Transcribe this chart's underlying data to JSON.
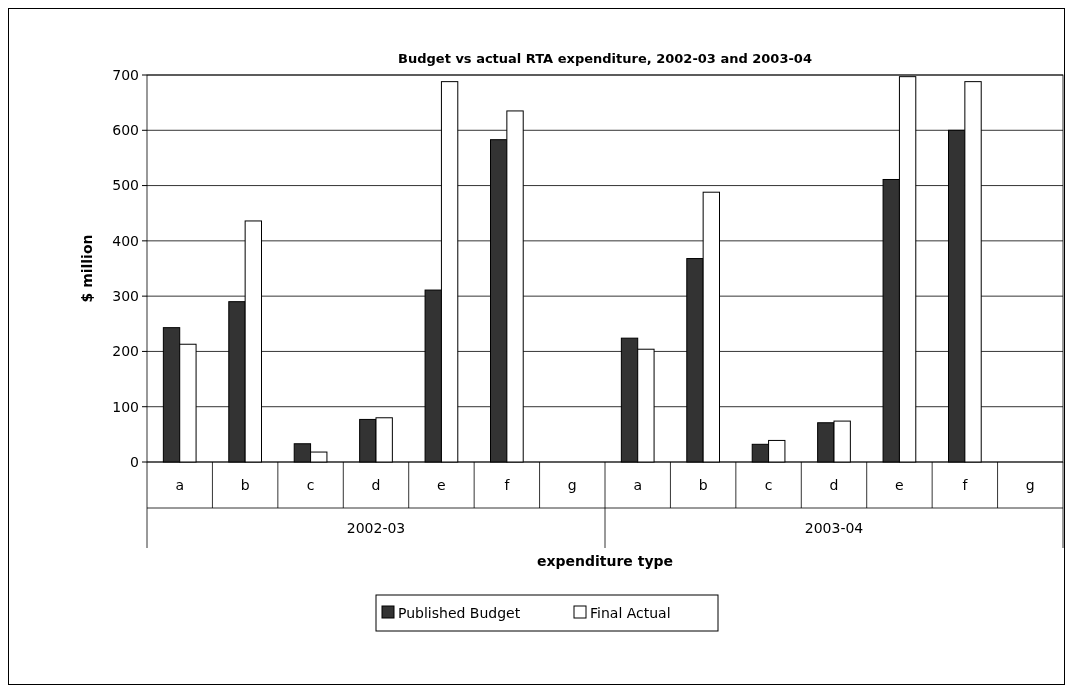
{
  "chart_data": {
    "type": "bar",
    "title": "Budget vs actual RTA expenditure, 2002-03 and 2003-04",
    "xlabel": "expenditure type",
    "ylabel": "$ million",
    "categories": [
      "a",
      "b",
      "c",
      "d",
      "e",
      "f",
      "g",
      "a",
      "b",
      "c",
      "d",
      "e",
      "f",
      "g"
    ],
    "annotations": [
      "2002-03",
      "2003-04"
    ],
    "series": [
      {
        "name": "Published Budget",
        "color": "#333333",
        "values": [
          243,
          290,
          33,
          77,
          311,
          583,
          null,
          224,
          368,
          32,
          71,
          511,
          600,
          null
        ]
      },
      {
        "name": "Final Actual",
        "color": "#ffffff",
        "values": [
          213,
          436,
          18,
          80,
          688,
          635,
          null,
          204,
          488,
          39,
          74,
          697,
          688,
          null
        ]
      }
    ],
    "ylim": [
      0,
      700
    ],
    "yticks": [
      0,
      100,
      200,
      300,
      400,
      500,
      600,
      700
    ],
    "grid": "y",
    "legend": "bottom"
  }
}
